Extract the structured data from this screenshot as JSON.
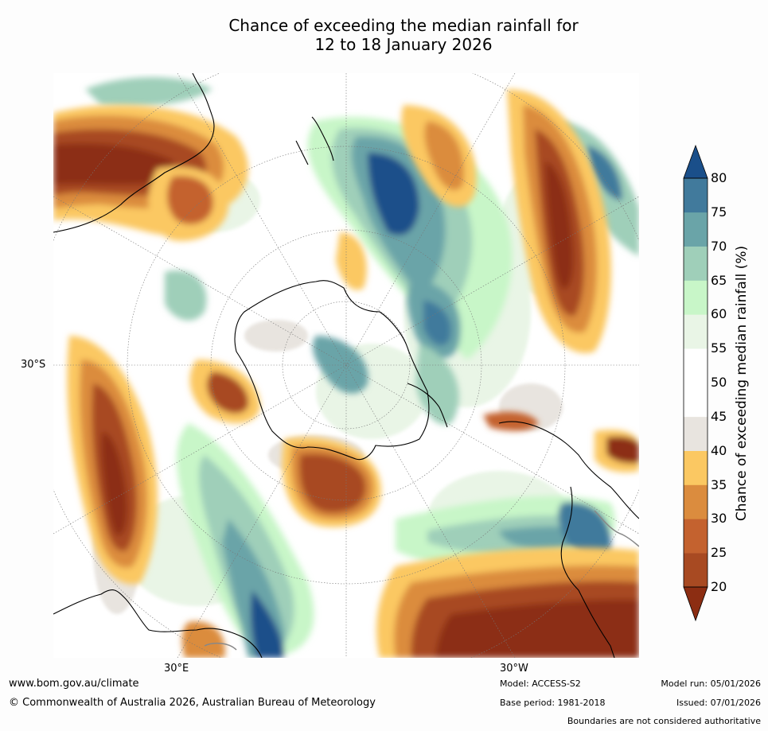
{
  "title": {
    "line1": "Chance of exceeding the median rainfall for",
    "line2": "12 to 18 January 2026"
  },
  "map": {
    "lat_label": "30°S",
    "lon_labels": [
      "30°E",
      "30°W"
    ],
    "projection": "south-polar-stereographic",
    "palette": {
      "c20": "#8c2d12",
      "c25": "#a84a22",
      "c30": "#c4622f",
      "c35": "#db8c3e",
      "c40": "#fbc862",
      "c45": "#e8e4df",
      "c50": "#ffffff",
      "c55": "#ffffff",
      "c60": "#e9f5e6",
      "c65": "#c8f6c8",
      "c70": "#9fcfb9",
      "c75": "#6aa4a8",
      "c80": "#417a9c",
      "cmax": "#1a4f8a",
      "land_line": "#000000",
      "border_line": "#888888"
    }
  },
  "colorbar": {
    "label": "Chance of exceeding median rainfall (%)",
    "ticks": [
      "20",
      "25",
      "30",
      "35",
      "40",
      "45",
      "50",
      "55",
      "60",
      "65",
      "70",
      "75",
      "80"
    ],
    "colors": [
      "#a84a22",
      "#c4622f",
      "#db8c3e",
      "#fbc862",
      "#e8e4df",
      "#ffffff",
      "#ffffff",
      "#e9f5e6",
      "#c8f6c8",
      "#9fcfb9",
      "#6aa4a8",
      "#417a9c"
    ],
    "under_color": "#8c2d12",
    "over_color": "#1a4f8a"
  },
  "footer": {
    "website": "www.bom.gov.au/climate",
    "copyright": "© Commonwealth of Australia 2026, Australian Bureau of Meteorology",
    "model": "Model: ACCESS-S2",
    "base_period": "Base period: 1981-2018",
    "model_run": "Model run: 05/01/2026",
    "issued": "Issued: 07/01/2026",
    "disclaimer": "Boundaries are not considered authoritative"
  }
}
